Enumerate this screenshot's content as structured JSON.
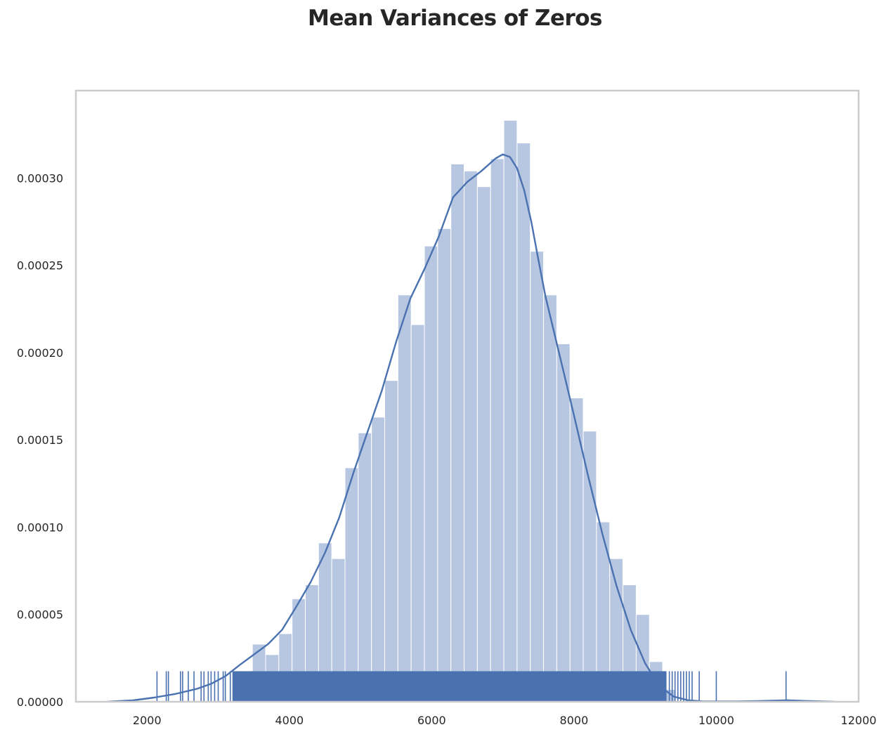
{
  "chart_data": {
    "type": "histogram",
    "title": "Mean Variances of Zeros",
    "xlabel": "",
    "ylabel": "",
    "xlim": [
      1000,
      12000
    ],
    "ylim": [
      0,
      0.00035
    ],
    "grid": false,
    "x_ticks": [
      "2000",
      "4000",
      "6000",
      "8000",
      "10000",
      "12000"
    ],
    "y_ticks": [
      "0.00000",
      "0.00005",
      "0.00010",
      "0.00015",
      "0.00020",
      "0.00025",
      "0.00030"
    ],
    "colors": {
      "bars": "#b7c7e1",
      "kde": "#4a71b0",
      "rug": "#4a71b0",
      "frame": "#cccccc"
    },
    "histogram": {
      "bin_width": 186,
      "bins": [
        {
          "x0": 3480,
          "density": 3.3e-05
        },
        {
          "x0": 3666,
          "density": 2.7e-05
        },
        {
          "x0": 3852,
          "density": 3.9e-05
        },
        {
          "x0": 4038,
          "density": 5.9e-05
        },
        {
          "x0": 4224,
          "density": 6.7e-05
        },
        {
          "x0": 4410,
          "density": 9.1e-05
        },
        {
          "x0": 4596,
          "density": 8.2e-05
        },
        {
          "x0": 4782,
          "density": 0.000134
        },
        {
          "x0": 4968,
          "density": 0.000154
        },
        {
          "x0": 5154,
          "density": 0.000163
        },
        {
          "x0": 5340,
          "density": 0.000184
        },
        {
          "x0": 5526,
          "density": 0.000233
        },
        {
          "x0": 5712,
          "density": 0.000216
        },
        {
          "x0": 5898,
          "density": 0.000261
        },
        {
          "x0": 6084,
          "density": 0.000271
        },
        {
          "x0": 6270,
          "density": 0.000308
        },
        {
          "x0": 6456,
          "density": 0.000304
        },
        {
          "x0": 6642,
          "density": 0.000295
        },
        {
          "x0": 6828,
          "density": 0.000311
        },
        {
          "x0": 7014,
          "density": 0.000333
        },
        {
          "x0": 7200,
          "density": 0.00032
        },
        {
          "x0": 7386,
          "density": 0.000258
        },
        {
          "x0": 7572,
          "density": 0.000233
        },
        {
          "x0": 7758,
          "density": 0.000205
        },
        {
          "x0": 7944,
          "density": 0.000174
        },
        {
          "x0": 8130,
          "density": 0.000155
        },
        {
          "x0": 8316,
          "density": 0.000103
        },
        {
          "x0": 8502,
          "density": 8.2e-05
        },
        {
          "x0": 8688,
          "density": 6.7e-05
        },
        {
          "x0": 8874,
          "density": 5e-05
        },
        {
          "x0": 9060,
          "density": 2.3e-05
        },
        {
          "x0": 9246,
          "density": 7e-06
        }
      ]
    },
    "kde": {
      "x": [
        1450,
        1800,
        2100,
        2400,
        2700,
        2900,
        3100,
        3300,
        3500,
        3700,
        3900,
        4100,
        4300,
        4500,
        4700,
        4900,
        5100,
        5300,
        5500,
        5700,
        5900,
        6100,
        6300,
        6500,
        6700,
        6900,
        7000,
        7100,
        7200,
        7300,
        7400,
        7500,
        7600,
        7800,
        8000,
        8200,
        8400,
        8600,
        8800,
        9000,
        9200,
        9400,
        9600,
        9800,
        10000,
        10300,
        10600,
        11000,
        11300,
        11650
      ],
      "y": [
        1e-07,
        8e-07,
        2.4e-06,
        4.5e-06,
        7.4e-06,
        1.03e-05,
        1.46e-05,
        2.1e-05,
        2.7e-05,
        3.3e-05,
        4.13e-05,
        5.46e-05,
        6.86e-05,
        8.53e-05,
        0.0001054,
        0.0001311,
        0.0001547,
        0.0001783,
        0.000206,
        0.0002309,
        0.0002479,
        0.0002665,
        0.0002888,
        0.0002977,
        0.000304,
        0.0003112,
        0.0003135,
        0.000312,
        0.0003055,
        0.000293,
        0.000275,
        0.000253,
        0.000232,
        0.000198,
        0.000164,
        0.000129,
        9.6e-05,
        6.6e-05,
        4.1e-05,
        2.2e-05,
        9e-06,
        3e-06,
        9e-07,
        3e-07,
        2e-07,
        2e-07,
        4e-07,
        9e-07,
        4e-07,
        1e-07
      ]
    },
    "rug": {
      "height_density": 1.75e-05,
      "dense_range": [
        3200,
        9300
      ],
      "outliers": [
        2140,
        2270,
        2300,
        2470,
        2500,
        2580,
        2660,
        2760,
        2800,
        2860,
        2900,
        2950,
        3000,
        3070,
        3100,
        3170,
        9340,
        9380,
        9420,
        9460,
        9500,
        9540,
        9580,
        9620,
        9660,
        9760,
        10000,
        10980
      ]
    }
  }
}
